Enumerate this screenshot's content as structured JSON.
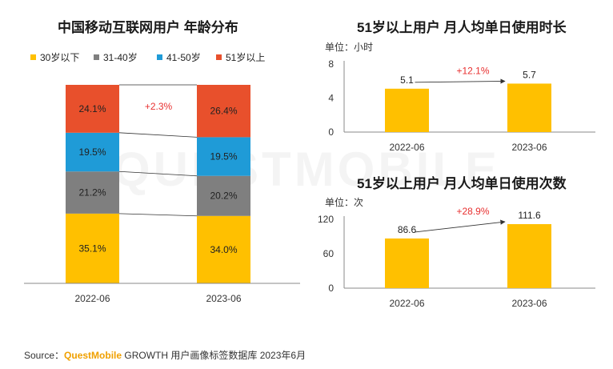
{
  "titles": {
    "left": "中国移动互联网用户 年龄分布",
    "right_top": "51岁以上用户 月人均单日使用时长",
    "right_bottom": "51岁以上用户 月人均单日使用次数"
  },
  "units": {
    "right_top": "单位：小时",
    "right_bottom": "单位：次"
  },
  "watermark": "QUESTMOBILE",
  "source": {
    "prefix": "Source：",
    "brand": "QuestMobile",
    "suffix": " GROWTH 用户画像标签数据库 2023年6月"
  },
  "colors": {
    "age_30_below": "#FFC000",
    "age_31_40": "#7F7F7F",
    "age_41_50": "#1F9BD7",
    "age_51_above": "#E8502C",
    "bar_yellow": "#FFC000",
    "growth_text": "#E83030"
  },
  "chart_data": [
    {
      "type": "bar",
      "stacked": true,
      "title": "中国移动互联网用户 年龄分布",
      "categories": [
        "2022-06",
        "2023-06"
      ],
      "series": [
        {
          "name": "30岁以下",
          "values": [
            35.1,
            34.0
          ],
          "labels": [
            "35.1%",
            "34.0%"
          ]
        },
        {
          "name": "31-40岁",
          "values": [
            21.2,
            20.2
          ],
          "labels": [
            "21.2%",
            "20.2%"
          ]
        },
        {
          "name": "41-50岁",
          "values": [
            19.5,
            19.5
          ],
          "labels": [
            "19.5%",
            "19.5%"
          ]
        },
        {
          "name": "51岁以上",
          "values": [
            24.1,
            26.4
          ],
          "labels": [
            "24.1%",
            "26.4%"
          ]
        }
      ],
      "annotation": "+2.3%",
      "legend": "top",
      "unit": "%"
    },
    {
      "type": "bar",
      "title": "51岁以上用户 月人均单日使用时长",
      "categories": [
        "2022-06",
        "2023-06"
      ],
      "values": [
        5.1,
        5.7
      ],
      "labels": [
        "5.1",
        "5.7"
      ],
      "yticks": [
        "0",
        "4",
        "8"
      ],
      "ylim": [
        0,
        8
      ],
      "annotation": "+12.1%"
    },
    {
      "type": "bar",
      "title": "51岁以上用户 月人均单日使用次数",
      "categories": [
        "2022-06",
        "2023-06"
      ],
      "values": [
        86.6,
        111.6
      ],
      "labels": [
        "86.6",
        "111.6"
      ],
      "yticks": [
        "0",
        "60",
        "120"
      ],
      "ylim": [
        0,
        120
      ],
      "annotation": "+28.9%"
    }
  ]
}
